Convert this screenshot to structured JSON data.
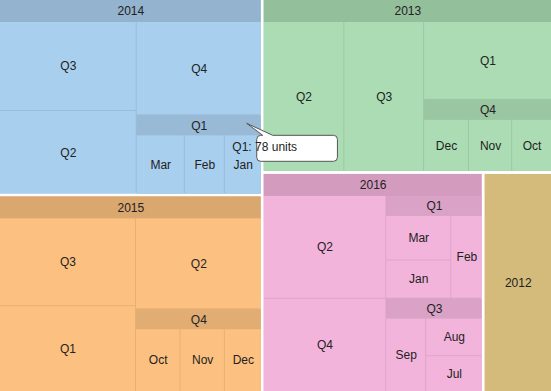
{
  "chart_data": {
    "type": "treemap",
    "data": [
      {
        "name": "2014",
        "color": "#a9cfee",
        "children": [
          {
            "name": "Q3",
            "value": 96
          },
          {
            "name": "Q2",
            "value": 90
          },
          {
            "name": "Q4",
            "value": 92
          },
          {
            "name": "Q1",
            "children": [
              {
                "name": "Mar",
                "value": 30
              },
              {
                "name": "Feb",
                "value": 25
              },
              {
                "name": "Jan",
                "value": 23
              }
            ]
          }
        ]
      },
      {
        "name": "2015",
        "color": "#fcc180",
        "children": [
          {
            "name": "Q3",
            "value": 94
          },
          {
            "name": "Q1",
            "value": 92
          },
          {
            "name": "Q2",
            "value": 90
          },
          {
            "name": "Q4",
            "children": [
              {
                "name": "Oct",
                "value": 29
              },
              {
                "name": "Nov",
                "value": 29
              },
              {
                "name": "Dec",
                "value": 24
              }
            ]
          }
        ]
      },
      {
        "name": "2013",
        "color": "#abdcb3",
        "children": [
          {
            "name": "Q2",
            "value": 97
          },
          {
            "name": "Q3",
            "value": 96
          },
          {
            "name": "Q1",
            "value": 80
          },
          {
            "name": "Q4",
            "children": [
              {
                "name": "Dec",
                "value": 26
              },
              {
                "name": "Nov",
                "value": 25
              },
              {
                "name": "Oct",
                "value": 23
              }
            ]
          }
        ]
      },
      {
        "name": "2016",
        "color": "#f3b4dc",
        "children": [
          {
            "name": "Q2",
            "value": 98
          },
          {
            "name": "Q4",
            "value": 89
          },
          {
            "name": "Q1",
            "children": [
              {
                "name": "Mar",
                "value": 28
              },
              {
                "name": "Jan",
                "value": 24
              },
              {
                "name": "Feb",
                "value": 25
              }
            ]
          },
          {
            "name": "Q3",
            "children": [
              {
                "name": "Sep",
                "value": 29
              },
              {
                "name": "Aug",
                "value": 21
              },
              {
                "name": "Jul",
                "value": 20
              }
            ]
          }
        ]
      },
      {
        "name": "2012",
        "color": "#d5bb7b",
        "value": 105
      }
    ],
    "annotations": [
      {
        "text": "Q1: 78 units",
        "target": [
          "2014",
          "Q1"
        ]
      }
    ]
  }
}
